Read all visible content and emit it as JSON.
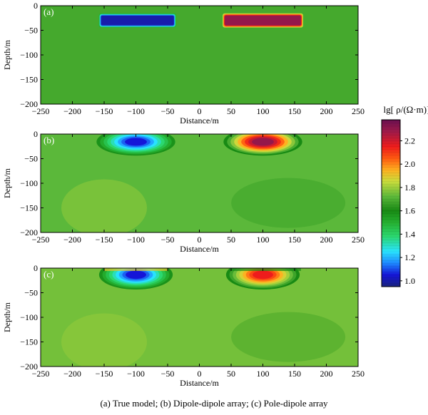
{
  "figure": {
    "caption": "(a) True model; (b) Dipole-dipole array; (c) Pole-dipole array"
  },
  "chart_data": [
    {
      "type": "heatmap",
      "panel_label": "(a)",
      "xlabel": "Distance/m",
      "ylabel": "Depth/m",
      "xlim": [
        -250,
        250
      ],
      "ylim": [
        -200,
        0
      ],
      "xticks": [
        -250,
        -200,
        -150,
        -100,
        -50,
        0,
        50,
        100,
        150,
        200,
        250
      ],
      "yticks": [
        0,
        -50,
        -100,
        -150,
        -200
      ],
      "background_value": 1.68,
      "anomalies": [
        {
          "x_range": [
            -155,
            -40
          ],
          "depth_range": [
            -40,
            -20
          ],
          "value": 1.0
        },
        {
          "x_range": [
            40,
            160
          ],
          "depth_range": [
            -40,
            -20
          ],
          "value": 2.3
        }
      ]
    },
    {
      "type": "heatmap",
      "panel_label": "(b)",
      "xlabel": "Distance/m",
      "ylabel": "Depth/m",
      "xlim": [
        -250,
        250
      ],
      "ylim": [
        -200,
        0
      ],
      "xticks": [
        -250,
        -200,
        -150,
        -100,
        -50,
        0,
        50,
        100,
        150,
        200,
        250
      ],
      "yticks": [
        0,
        -50,
        -100,
        -150,
        -200
      ],
      "background_value": 1.72,
      "anomalies": [
        {
          "center_x": -100,
          "center_depth": -20,
          "half_width": 62,
          "half_depth": 28,
          "value": 1.05
        },
        {
          "center_x": 100,
          "center_depth": -20,
          "half_width": 62,
          "half_depth": 28,
          "value": 2.3
        }
      ]
    },
    {
      "type": "heatmap",
      "panel_label": "(c)",
      "xlabel": "Distance/m",
      "ylabel": "Depth/m",
      "xlim": [
        -250,
        250
      ],
      "ylim": [
        -200,
        0
      ],
      "xticks": [
        -250,
        -200,
        -150,
        -100,
        -50,
        0,
        50,
        100,
        150,
        200,
        250
      ],
      "yticks": [
        0,
        -50,
        -100,
        -150,
        -200
      ],
      "background_value": 1.75,
      "anomalies": [
        {
          "center_x": -100,
          "center_depth": -18,
          "half_width": 58,
          "half_depth": 30,
          "value": 1.05
        },
        {
          "center_x": 100,
          "center_depth": -18,
          "half_width": 58,
          "half_depth": 30,
          "value": 2.15
        }
      ]
    }
  ],
  "colorbar": {
    "title": "lg[ ρ/(Ω·m)]",
    "range": [
      0.95,
      2.38
    ],
    "ticks": [
      "2.2",
      "2.0",
      "1.8",
      "1.6",
      "1.4",
      "1.2",
      "1.0"
    ],
    "tick_values": [
      2.2,
      2.0,
      1.8,
      1.6,
      1.4,
      1.2,
      1.0
    ],
    "colors": [
      {
        "v": 0.95,
        "c": "#1a237e"
      },
      {
        "v": 1.05,
        "c": "#1515d8"
      },
      {
        "v": 1.15,
        "c": "#1e88ff"
      },
      {
        "v": 1.25,
        "c": "#29e3ff"
      },
      {
        "v": 1.38,
        "c": "#2bd870"
      },
      {
        "v": 1.5,
        "c": "#25b030"
      },
      {
        "v": 1.6,
        "c": "#188a14"
      },
      {
        "v": 1.72,
        "c": "#5bb83a"
      },
      {
        "v": 1.85,
        "c": "#c8dc3c"
      },
      {
        "v": 1.95,
        "c": "#ffb020"
      },
      {
        "v": 2.05,
        "c": "#ff5a10"
      },
      {
        "v": 2.15,
        "c": "#ee1c1c"
      },
      {
        "v": 2.28,
        "c": "#9e1a4a"
      },
      {
        "v": 2.38,
        "c": "#6a0f50"
      }
    ]
  }
}
